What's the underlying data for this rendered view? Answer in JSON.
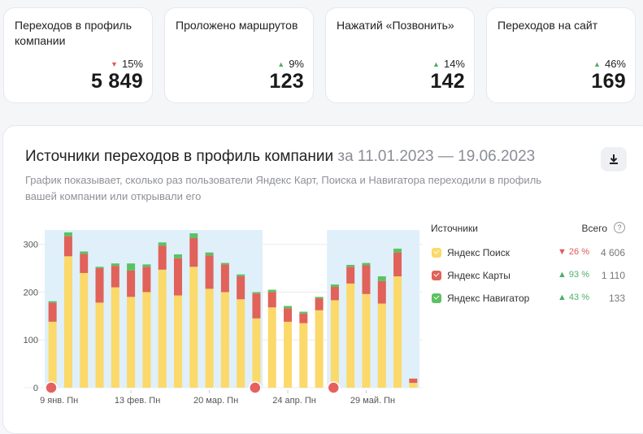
{
  "metrics": [
    {
      "title": "Переходов в профиль компании",
      "trend": "down",
      "delta": "15%",
      "value": "5 849"
    },
    {
      "title": "Проложено маршрутов",
      "trend": "up",
      "delta": "9%",
      "value": "123"
    },
    {
      "title": "Нажатий «Позвонить»",
      "trend": "up",
      "delta": "14%",
      "value": "142"
    },
    {
      "title": "Переходов на сайт",
      "trend": "up",
      "delta": "46%",
      "value": "169"
    }
  ],
  "panel": {
    "title": "Источники переходов в профиль компании",
    "range": "за 11.01.2023 — 19.06.2023",
    "subtitle": "График показывает, сколько раз пользователи Яндекс Карт, Поиска и Навигатора переходили в профиль вашей компании или открывали его",
    "download_icon": "download-icon"
  },
  "legend": {
    "sources_header": "Источники",
    "total_header": "Всего",
    "info_icon": "info-icon",
    "items": [
      {
        "name": "Яндекс Поиск",
        "trend": "down",
        "pct": "26 %",
        "total": "4 606",
        "color": "#fbd96a"
      },
      {
        "name": "Яндекс Карты",
        "trend": "up",
        "pct": "93 %",
        "total": "1 110",
        "color": "#e0625a"
      },
      {
        "name": "Яндекс Навигатор",
        "trend": "up",
        "pct": "43 %",
        "total": "133",
        "color": "#5cc163"
      }
    ]
  },
  "chart_data": {
    "type": "bar",
    "stacked": true,
    "ylim": [
      0,
      330
    ],
    "yticks": [
      0,
      100,
      200,
      300
    ],
    "x_tick_labels": [
      "9 янв. Пн",
      "13 фев. Пн",
      "20 мар. Пн",
      "24 апр. Пн",
      "29 май. Пн"
    ],
    "x_tick_positions": [
      0,
      5,
      10,
      15,
      20
    ],
    "highlight_ranges": [
      [
        0,
        13
      ],
      [
        18,
        23
      ]
    ],
    "markers": [
      0,
      13,
      18
    ],
    "colors": {
      "search": "#fbd96a",
      "maps": "#e0625a",
      "navigator": "#5cc163",
      "highlight": "#dff0fa",
      "grid": "#ececec"
    },
    "series": [
      {
        "name": "Яндекс Поиск",
        "values": [
          138,
          275,
          240,
          178,
          210,
          190,
          200,
          247,
          193,
          253,
          207,
          200,
          185,
          145,
          168,
          138,
          135,
          162,
          183,
          218,
          196,
          176,
          233,
          10
        ]
      },
      {
        "name": "Яндекс Карты",
        "values": [
          40,
          42,
          40,
          72,
          45,
          55,
          53,
          50,
          78,
          60,
          70,
          58,
          48,
          52,
          32,
          28,
          20,
          25,
          28,
          35,
          60,
          47,
          50,
          9
        ]
      },
      {
        "name": "Яндекс Навигатор",
        "values": [
          3,
          8,
          5,
          3,
          5,
          15,
          5,
          7,
          8,
          10,
          6,
          3,
          4,
          3,
          5,
          5,
          4,
          3,
          5,
          4,
          5,
          10,
          8,
          0
        ]
      }
    ]
  }
}
